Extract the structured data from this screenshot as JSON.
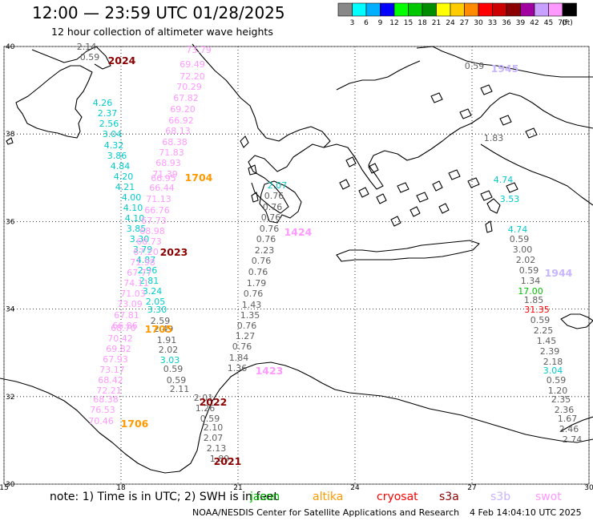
{
  "header": {
    "title": "12:00 — 23:59 UTC 01/28/2025",
    "subtitle": "12 hour collection of altimeter wave heights"
  },
  "colorbar": {
    "unit": "(ft)",
    "bins": [
      {
        "label": "3",
        "color": "#888888"
      },
      {
        "label": "6",
        "color": "#00ffff"
      },
      {
        "label": "9",
        "color": "#00b0ff"
      },
      {
        "label": "12",
        "color": "#0000ff"
      },
      {
        "label": "15",
        "color": "#00ff00"
      },
      {
        "label": "18",
        "color": "#00c800"
      },
      {
        "label": "21",
        "color": "#008c00"
      },
      {
        "label": "24",
        "color": "#ffff00"
      },
      {
        "label": "27",
        "color": "#ffcc00"
      },
      {
        "label": "30",
        "color": "#ff8c00"
      },
      {
        "label": "33",
        "color": "#ff0000"
      },
      {
        "label": "36",
        "color": "#cc0000"
      },
      {
        "label": "39",
        "color": "#8b0000"
      },
      {
        "label": "42",
        "color": "#a000a0"
      },
      {
        "label": "45",
        "color": "#c8a0ff"
      },
      {
        "label": "70",
        "color": "#ff99ff"
      },
      {
        "label": "",
        "color": "#000000"
      }
    ]
  },
  "map": {
    "lon_range": [
      15,
      30
    ],
    "lat_range": [
      30,
      40
    ],
    "x_ticks": [
      "15",
      "18",
      "21",
      "24",
      "27",
      "30"
    ],
    "y_ticks": [
      "40",
      "38",
      "36",
      "34",
      "32",
      "30"
    ],
    "grid": "dotted"
  },
  "satellite_colors": {
    "jason": "#00c000",
    "altika": "#ff9900",
    "cryosat": "#ff0000",
    "s3a": "#8b0000",
    "s3b": "#c8b4ff",
    "swot": "#ff99ff",
    "sentinel6": "#00cccc",
    "gray": "#606060"
  },
  "pass_labels": [
    {
      "text": "2024",
      "sat": "s3a"
    },
    {
      "text": "1945",
      "sat": "s3b"
    },
    {
      "text": "1704",
      "sat": "altika"
    },
    {
      "text": "2023",
      "sat": "s3a"
    },
    {
      "text": "1424",
      "sat": "swot"
    },
    {
      "text": "1944",
      "sat": "s3b"
    },
    {
      "text": "1705",
      "sat": "altika"
    },
    {
      "text": "1423",
      "sat": "swot"
    },
    {
      "text": "2022",
      "sat": "s3a"
    },
    {
      "text": "1706",
      "sat": "altika"
    },
    {
      "text": "2021",
      "sat": "s3a"
    }
  ],
  "tracks": [
    {
      "name": "s3a_2024_upper",
      "sat": "gray",
      "values": [
        "2.14",
        "0.59"
      ]
    },
    {
      "name": "s6_west_upper",
      "sat": "sentinel6",
      "values": [
        "4.26",
        "2.37",
        "2.56",
        "3.04",
        "4.32",
        "3.86",
        "4.84",
        "4.20",
        "4.21",
        "4.00",
        "4.10",
        "4.10",
        "3.85",
        "3.30",
        "3.79",
        "4.87",
        "2.96",
        "2.81",
        "3.24",
        "2.05"
      ]
    },
    {
      "name": "swot_west",
      "sat": "swot",
      "values": [
        "73.79",
        "69.49",
        "72.20",
        "70.29",
        "67.82",
        "69.20",
        "66.92",
        "68.13",
        "68.38",
        "71.83",
        "68.93",
        "71.39",
        "66.95",
        "66.44",
        "71.13",
        "66.76",
        "67.73",
        "68.98",
        "68.73",
        "67.20",
        "71.98",
        "67.77",
        "74.11",
        "71.03",
        "73.09",
        "67.81",
        "66.86",
        "68.70",
        "70.42",
        "69.82",
        "67.93",
        "73.17",
        "68.42",
        "72.21",
        "68.38",
        "76.53",
        "70.46"
      ]
    },
    {
      "name": "s6_west_lower",
      "sat": "sentinel6",
      "values": [
        "3.30",
        "3.03"
      ]
    },
    {
      "name": "jason_west",
      "sat": "gray",
      "values": [
        "2.59",
        "2.49",
        "1.91",
        "2.02",
        "0.59",
        "0.59",
        "2.11",
        "2.01",
        "1.26",
        "0.59",
        "2.10",
        "2.07",
        "2.13",
        "1.89"
      ]
    },
    {
      "name": "mid_track",
      "sat": "gray",
      "values": [
        "0.76",
        "0.76",
        "0.76",
        "0.76",
        "0.76",
        "2.23",
        "0.76",
        "0.76",
        "1.79",
        "0.76",
        "1.43",
        "1.35",
        "0.76",
        "1.27",
        "0.76",
        "1.84",
        "1.36"
      ]
    },
    {
      "name": "mid_s6",
      "sat": "sentinel6",
      "values": [
        "2.07"
      ]
    },
    {
      "name": "east_s3b",
      "sat": "gray",
      "values": [
        "0.59",
        "1.83"
      ]
    },
    {
      "name": "east_s6",
      "sat": "sentinel6",
      "values": [
        "4.74",
        "3.53",
        "4.74"
      ]
    },
    {
      "name": "east_track",
      "sat": "gray",
      "values": [
        "0.59",
        "3.00",
        "2.02",
        "0.59",
        "1.34",
        "1.85",
        "0.59",
        "2.25",
        "1.45",
        "2.39",
        "2.18",
        "0.59",
        "1.20",
        "2.35",
        "2.36",
        "1.67",
        "2.46",
        "2.74"
      ]
    },
    {
      "name": "east_jason",
      "sat": "jason",
      "values": [
        "17.00"
      ]
    },
    {
      "name": "east_cryo",
      "sat": "cryosat",
      "values": [
        "31.35"
      ]
    },
    {
      "name": "east_s6_lower",
      "sat": "sentinel6",
      "values": [
        "3.04"
      ]
    }
  ],
  "note": {
    "text": "note: 1) Time is in UTC; 2) SWH is in feet",
    "satellites": [
      {
        "label": "jason",
        "sat": "jason"
      },
      {
        "label": "altika",
        "sat": "altika"
      },
      {
        "label": "cryosat",
        "sat": "cryosat"
      },
      {
        "label": "s3a",
        "sat": "s3a"
      },
      {
        "label": "s3b",
        "sat": "s3b"
      },
      {
        "label": "swot",
        "sat": "swot"
      }
    ]
  },
  "footer": {
    "org": "NOAA/NESDIS Center for Satellite Applications and Research",
    "timestamp": "4 Feb 14:04:10 UTC 2025"
  }
}
